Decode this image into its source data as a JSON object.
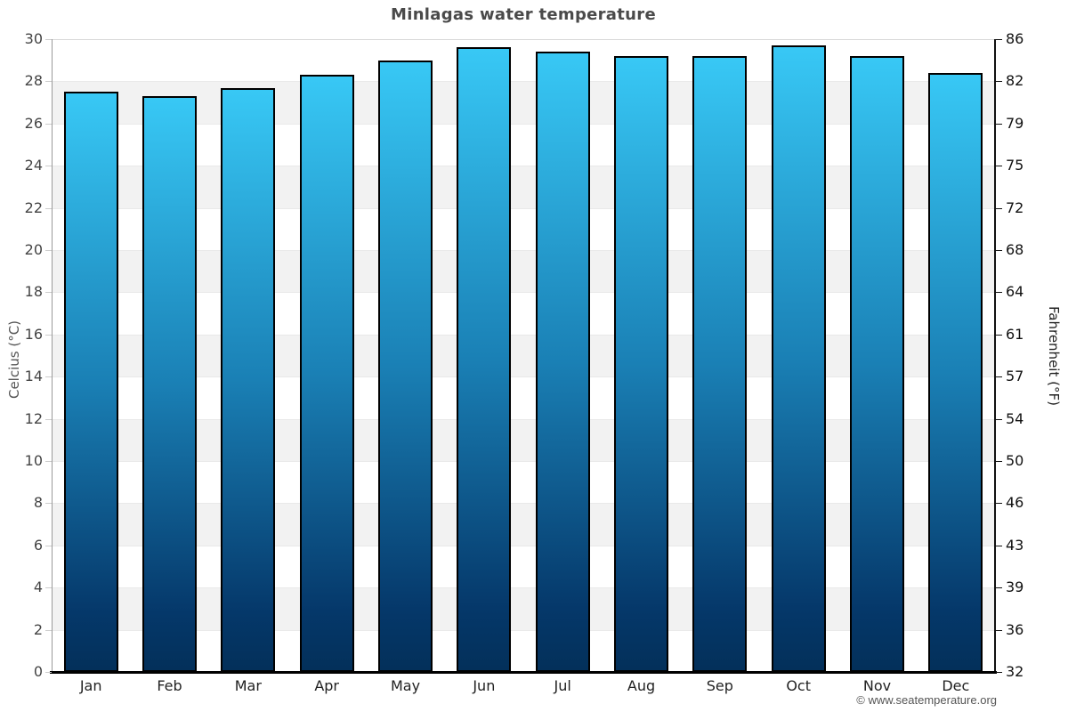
{
  "title": "Minlagas water temperature",
  "footer": {
    "credit": "© www.seatemperature.org"
  },
  "chart_data": {
    "type": "bar",
    "title": "Minlagas water temperature",
    "categories": [
      "Jan",
      "Feb",
      "Mar",
      "Apr",
      "May",
      "Jun",
      "Jul",
      "Aug",
      "Sep",
      "Oct",
      "Nov",
      "Dec"
    ],
    "values": [
      27.5,
      27.3,
      27.7,
      28.3,
      29.0,
      29.6,
      29.4,
      29.2,
      29.2,
      29.7,
      29.2,
      28.4
    ],
    "unit": "°C",
    "ylabel_left": "Celcius (°C)",
    "ylabel_right": "Fahrenheit (°F)",
    "ylim": [
      0,
      30
    ],
    "ytick_step_celsius": 2,
    "yticks_left": [
      30,
      28,
      26,
      24,
      22,
      20,
      18,
      16,
      14,
      12,
      10,
      8,
      6,
      4,
      2,
      0
    ],
    "yticks_right": [
      86,
      82,
      79,
      75,
      72,
      68,
      64,
      61,
      57,
      54,
      50,
      46,
      43,
      39,
      36,
      32
    ],
    "xlabel": "",
    "legend": "none",
    "grid": "alternating horizontal bands every 2°C"
  },
  "colors": {
    "bar_gradient_top": "#38c8f5",
    "bar_gradient_mid": "#1a80b5",
    "bar_gradient_bottom": "#05386a",
    "bar_border": "#000000",
    "band_gray": "#f2f2f2",
    "band_white": "#ffffff",
    "left_axis_line": "#999999",
    "right_axis_line": "#111111",
    "bottom_axis_line": "#000000",
    "title_color": "#4a4a4a"
  }
}
